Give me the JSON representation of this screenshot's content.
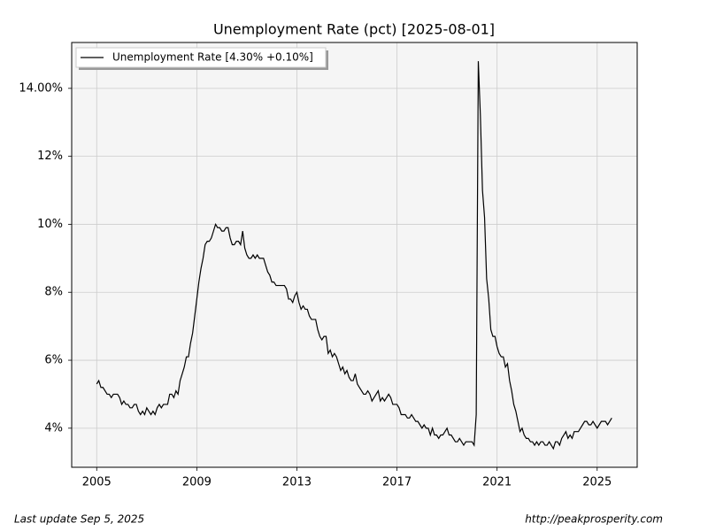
{
  "chart_data": {
    "type": "line",
    "title": "Unemployment Rate (pct) [2025-08-01]",
    "x": [
      2005,
      2005.083,
      2005.167,
      2005.25,
      2005.333,
      2005.417,
      2005.5,
      2005.583,
      2005.667,
      2005.75,
      2005.833,
      2005.917,
      2006,
      2006.083,
      2006.167,
      2006.25,
      2006.333,
      2006.417,
      2006.5,
      2006.583,
      2006.667,
      2006.75,
      2006.833,
      2006.917,
      2007,
      2007.083,
      2007.167,
      2007.25,
      2007.333,
      2007.417,
      2007.5,
      2007.583,
      2007.667,
      2007.75,
      2007.833,
      2007.917,
      2008,
      2008.083,
      2008.167,
      2008.25,
      2008.333,
      2008.417,
      2008.5,
      2008.583,
      2008.667,
      2008.75,
      2008.833,
      2008.917,
      2009,
      2009.083,
      2009.167,
      2009.25,
      2009.333,
      2009.417,
      2009.5,
      2009.583,
      2009.667,
      2009.75,
      2009.833,
      2009.917,
      2010,
      2010.083,
      2010.167,
      2010.25,
      2010.333,
      2010.417,
      2010.5,
      2010.583,
      2010.667,
      2010.75,
      2010.833,
      2010.917,
      2011,
      2011.083,
      2011.167,
      2011.25,
      2011.333,
      2011.417,
      2011.5,
      2011.583,
      2011.667,
      2011.75,
      2011.833,
      2011.917,
      2012,
      2012.083,
      2012.167,
      2012.25,
      2012.333,
      2012.417,
      2012.5,
      2012.583,
      2012.667,
      2012.75,
      2012.833,
      2012.917,
      2013,
      2013.083,
      2013.167,
      2013.25,
      2013.333,
      2013.417,
      2013.5,
      2013.583,
      2013.667,
      2013.75,
      2013.833,
      2013.917,
      2014,
      2014.083,
      2014.167,
      2014.25,
      2014.333,
      2014.417,
      2014.5,
      2014.583,
      2014.667,
      2014.75,
      2014.833,
      2014.917,
      2015,
      2015.083,
      2015.167,
      2015.25,
      2015.333,
      2015.417,
      2015.5,
      2015.583,
      2015.667,
      2015.75,
      2015.833,
      2015.917,
      2016,
      2016.083,
      2016.167,
      2016.25,
      2016.333,
      2016.417,
      2016.5,
      2016.583,
      2016.667,
      2016.75,
      2016.833,
      2016.917,
      2017,
      2017.083,
      2017.167,
      2017.25,
      2017.333,
      2017.417,
      2017.5,
      2017.583,
      2017.667,
      2017.75,
      2017.833,
      2017.917,
      2018,
      2018.083,
      2018.167,
      2018.25,
      2018.333,
      2018.417,
      2018.5,
      2018.583,
      2018.667,
      2018.75,
      2018.833,
      2018.917,
      2019,
      2019.083,
      2019.167,
      2019.25,
      2019.333,
      2019.417,
      2019.5,
      2019.583,
      2019.667,
      2019.75,
      2019.833,
      2019.917,
      2020,
      2020.083,
      2020.167,
      2020.25,
      2020.333,
      2020.417,
      2020.5,
      2020.583,
      2020.667,
      2020.75,
      2020.833,
      2020.917,
      2021,
      2021.083,
      2021.167,
      2021.25,
      2021.333,
      2021.417,
      2021.5,
      2021.583,
      2021.667,
      2021.75,
      2021.833,
      2021.917,
      2022,
      2022.083,
      2022.167,
      2022.25,
      2022.333,
      2022.417,
      2022.5,
      2022.583,
      2022.667,
      2022.75,
      2022.833,
      2022.917,
      2023,
      2023.083,
      2023.167,
      2023.25,
      2023.333,
      2023.417,
      2023.5,
      2023.583,
      2023.667,
      2023.75,
      2023.833,
      2023.917,
      2024,
      2024.083,
      2024.167,
      2024.25,
      2024.333,
      2024.417,
      2024.5,
      2024.583,
      2024.667,
      2024.75,
      2024.833,
      2024.917,
      2025,
      2025.083,
      2025.167,
      2025.25,
      2025.333,
      2025.417,
      2025.5,
      2025.583
    ],
    "series": [
      {
        "name": "Unemployment Rate [4.30% +0.10%]",
        "color": "#000000",
        "values": [
          5.3,
          5.4,
          5.2,
          5.2,
          5.1,
          5.0,
          5.0,
          4.9,
          5.0,
          5.0,
          5.0,
          4.9,
          4.7,
          4.8,
          4.7,
          4.7,
          4.6,
          4.6,
          4.7,
          4.7,
          4.5,
          4.4,
          4.5,
          4.4,
          4.6,
          4.5,
          4.4,
          4.5,
          4.4,
          4.6,
          4.7,
          4.6,
          4.7,
          4.7,
          4.7,
          5.0,
          5.0,
          4.9,
          5.1,
          5.0,
          5.4,
          5.6,
          5.8,
          6.1,
          6.1,
          6.5,
          6.8,
          7.3,
          7.8,
          8.3,
          8.7,
          9.0,
          9.4,
          9.5,
          9.5,
          9.6,
          9.8,
          10.0,
          9.9,
          9.9,
          9.8,
          9.8,
          9.9,
          9.9,
          9.6,
          9.4,
          9.4,
          9.5,
          9.5,
          9.4,
          9.8,
          9.3,
          9.1,
          9.0,
          9.0,
          9.1,
          9.0,
          9.1,
          9.0,
          9.0,
          9.0,
          8.8,
          8.6,
          8.5,
          8.3,
          8.3,
          8.2,
          8.2,
          8.2,
          8.2,
          8.2,
          8.1,
          7.8,
          7.8,
          7.7,
          7.9,
          8.0,
          7.7,
          7.5,
          7.6,
          7.5,
          7.5,
          7.3,
          7.2,
          7.2,
          7.2,
          6.9,
          6.7,
          6.6,
          6.7,
          6.7,
          6.2,
          6.3,
          6.1,
          6.2,
          6.1,
          5.9,
          5.7,
          5.8,
          5.6,
          5.7,
          5.5,
          5.4,
          5.4,
          5.6,
          5.3,
          5.2,
          5.1,
          5.0,
          5.0,
          5.1,
          5.0,
          4.8,
          4.9,
          5.0,
          5.1,
          4.8,
          4.9,
          4.8,
          4.9,
          5.0,
          4.9,
          4.7,
          4.7,
          4.7,
          4.6,
          4.4,
          4.4,
          4.4,
          4.3,
          4.3,
          4.4,
          4.3,
          4.2,
          4.2,
          4.1,
          4.0,
          4.1,
          4.0,
          4.0,
          3.8,
          4.0,
          3.8,
          3.8,
          3.7,
          3.8,
          3.8,
          3.9,
          4.0,
          3.8,
          3.8,
          3.7,
          3.6,
          3.6,
          3.7,
          3.6,
          3.5,
          3.6,
          3.6,
          3.6,
          3.6,
          3.5,
          4.4,
          14.8,
          13.2,
          11.0,
          10.2,
          8.4,
          7.8,
          6.9,
          6.7,
          6.7,
          6.4,
          6.2,
          6.1,
          6.1,
          5.8,
          5.9,
          5.4,
          5.1,
          4.7,
          4.5,
          4.2,
          3.9,
          4.0,
          3.8,
          3.7,
          3.7,
          3.6,
          3.6,
          3.5,
          3.6,
          3.5,
          3.6,
          3.6,
          3.5,
          3.5,
          3.6,
          3.5,
          3.4,
          3.6,
          3.6,
          3.5,
          3.7,
          3.8,
          3.9,
          3.7,
          3.8,
          3.7,
          3.9,
          3.9,
          3.9,
          4.0,
          4.1,
          4.2,
          4.2,
          4.1,
          4.1,
          4.2,
          4.1,
          4.0,
          4.1,
          4.2,
          4.2,
          4.2,
          4.1,
          4.2,
          4.3
        ]
      }
    ],
    "xlim": [
      2004.0,
      2026.6
    ],
    "xticks": [
      2005,
      2009,
      2013,
      2017,
      2021,
      2025
    ],
    "ylim": [
      2.85,
      15.35
    ],
    "yticks": [
      {
        "value": 4,
        "label": "4%"
      },
      {
        "value": 6,
        "label": "6%"
      },
      {
        "value": 8,
        "label": "8%"
      },
      {
        "value": 10,
        "label": "10%"
      },
      {
        "value": 12,
        "label": "12%"
      },
      {
        "value": 14,
        "label": "14.00%"
      }
    ],
    "grid": true,
    "legend": "upper left",
    "annotations": [
      "Last update Sep  5, 2025",
      "http://peakprosperity.com"
    ]
  }
}
